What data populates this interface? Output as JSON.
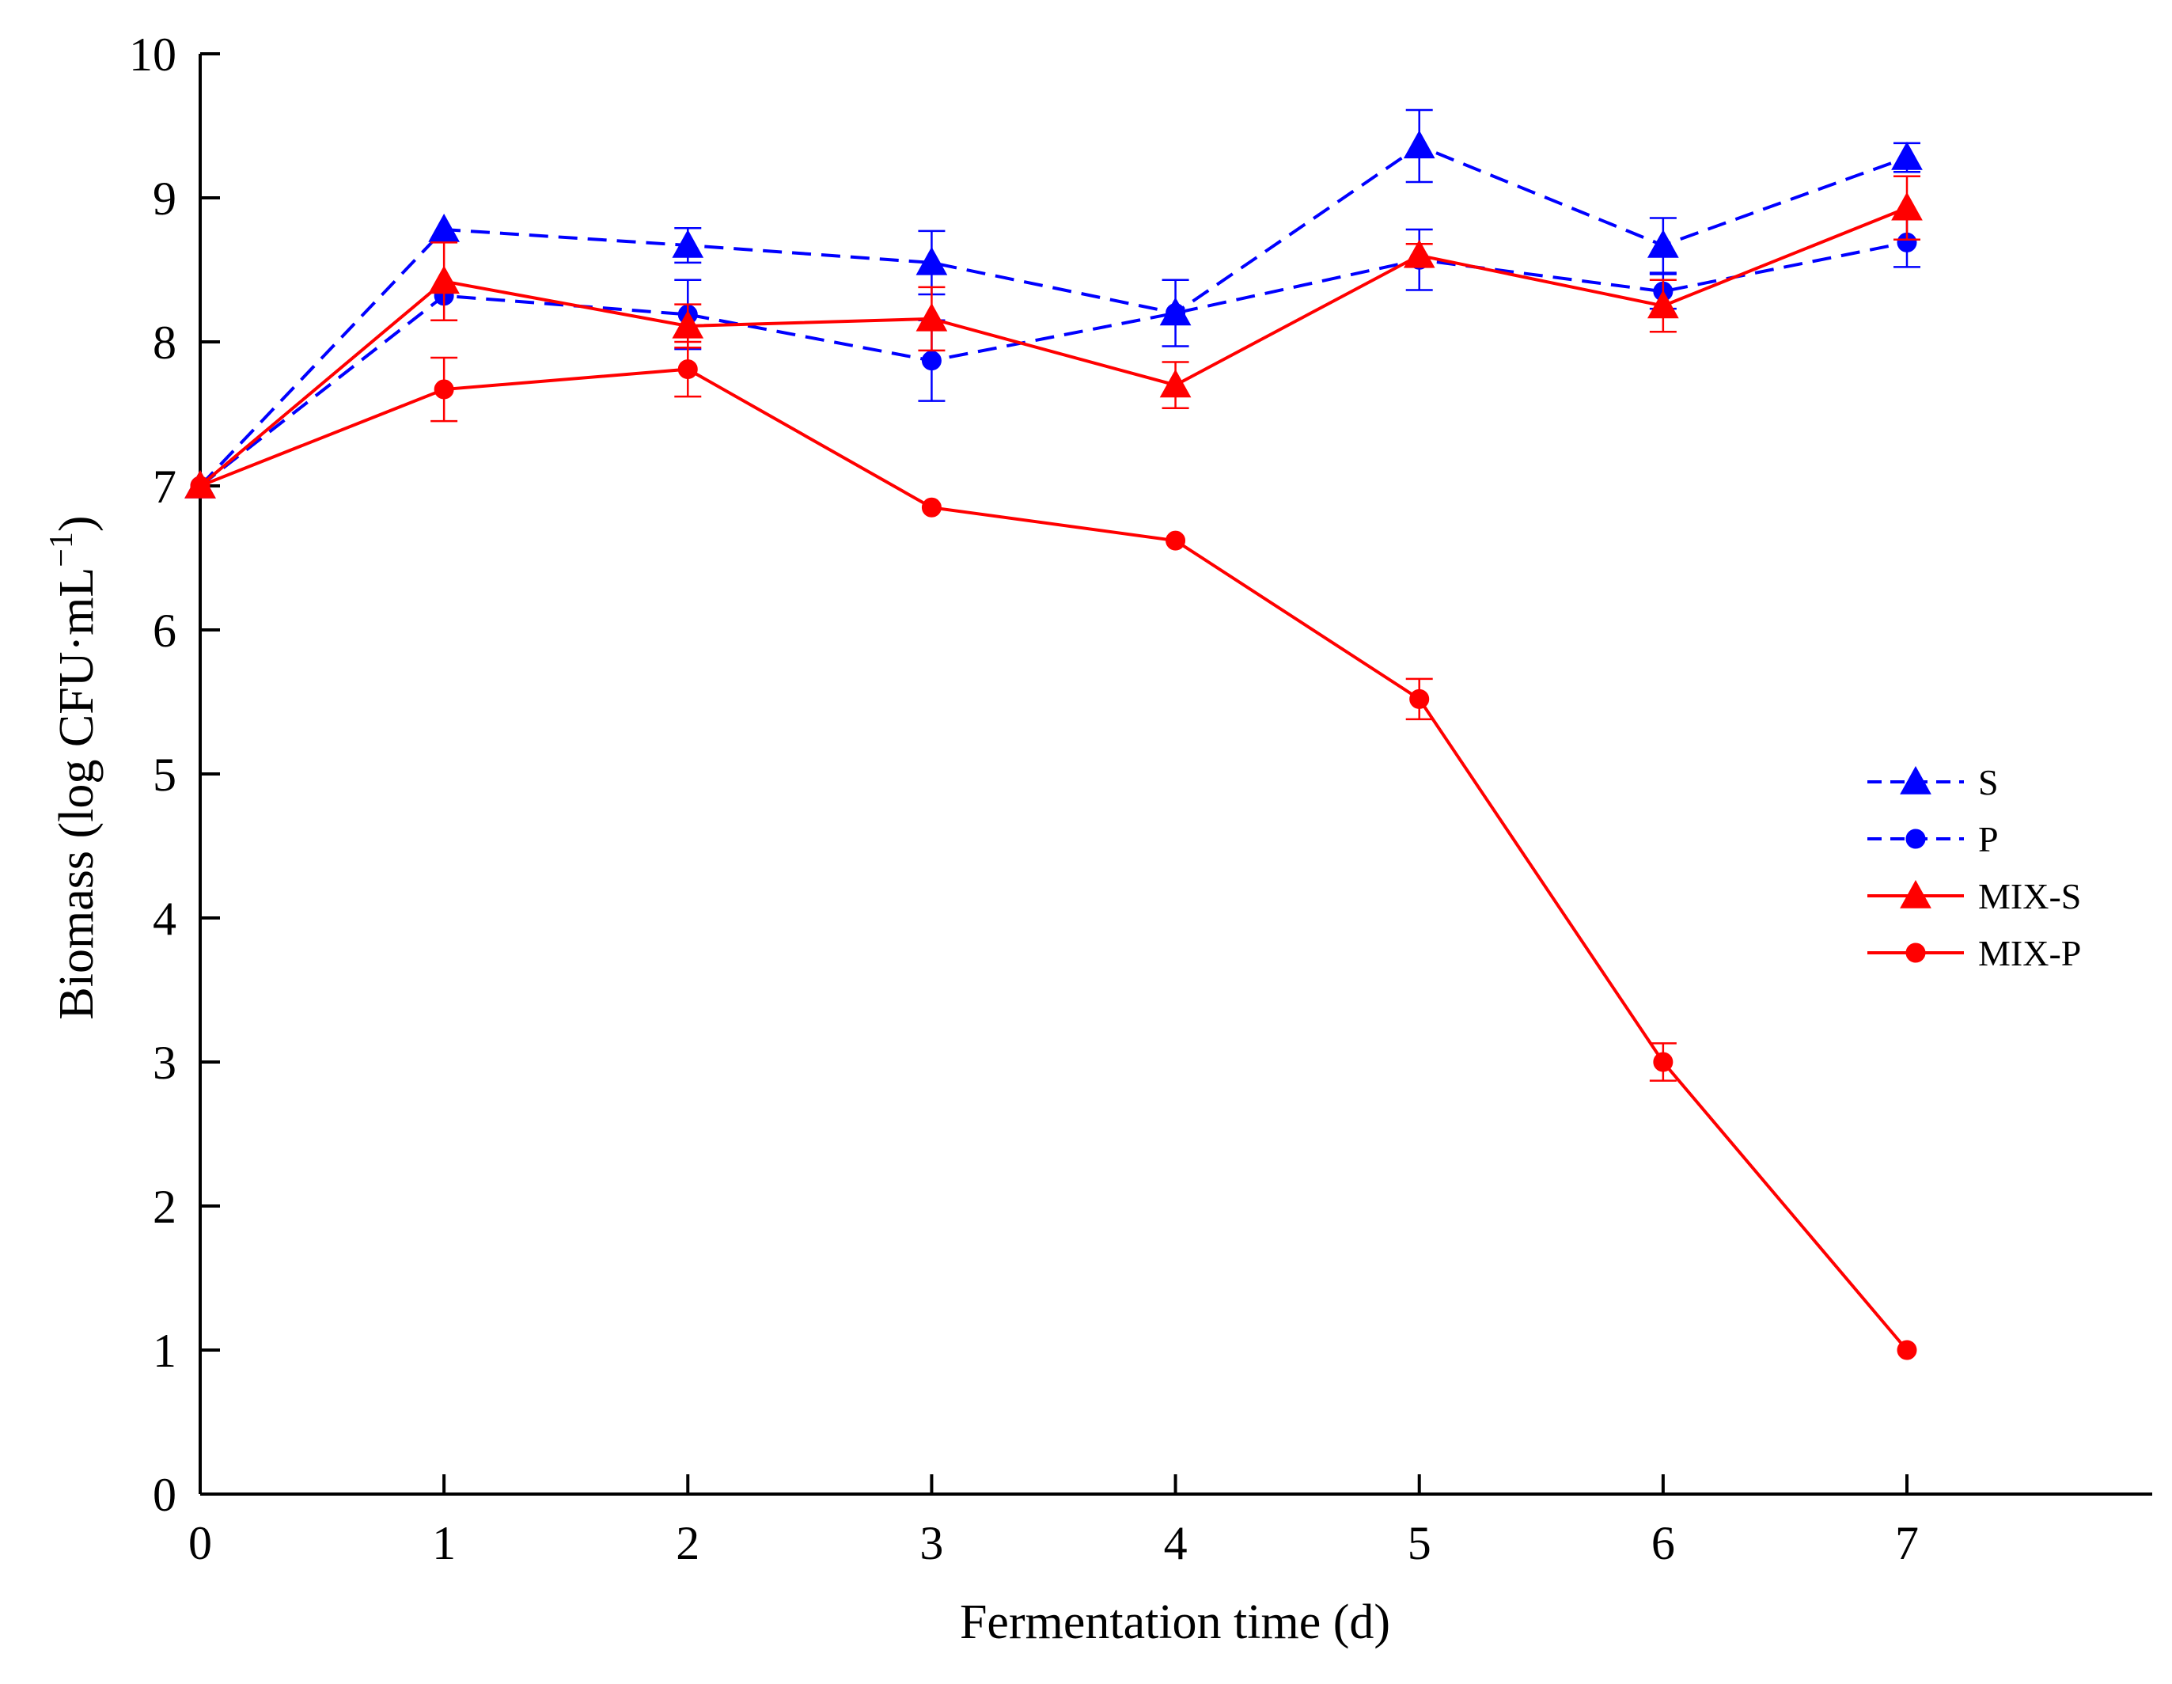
{
  "chart_data": {
    "type": "line",
    "title": "",
    "xlabel": "Fermentation time (d)",
    "ylabel": "Biomass (log CFU·mL",
    "ylabel_superscript": "−1",
    "ylabel_close": ")",
    "x": [
      0,
      1,
      2,
      3,
      4,
      5,
      6,
      7
    ],
    "xlim": [
      0,
      8
    ],
    "ylim": [
      0,
      10
    ],
    "xticks": [
      0,
      1,
      2,
      3,
      4,
      5,
      6,
      7
    ],
    "xtick_labels": [
      "0",
      "1",
      "2",
      "3",
      "4",
      "5",
      "6",
      "7"
    ],
    "yticks": [
      0,
      1,
      2,
      3,
      4,
      5,
      6,
      7,
      8,
      9,
      10
    ],
    "ytick_labels": [
      "0",
      "1",
      "2",
      "3",
      "4",
      "5",
      "6",
      "7",
      "8",
      "9",
      "10"
    ],
    "grid": false,
    "legend_position": "right",
    "series": [
      {
        "name": "S",
        "color": "#0000ff",
        "line_style": "dashed",
        "marker": "triangle",
        "values": [
          7.0,
          8.78,
          8.67,
          8.55,
          8.2,
          9.36,
          8.67,
          9.28
        ],
        "errors": [
          0,
          0,
          0.12,
          0.22,
          0.23,
          0.25,
          0.19,
          0.1
        ]
      },
      {
        "name": "P",
        "color": "#0000ff",
        "line_style": "dashed",
        "marker": "circle",
        "values": [
          7.0,
          8.32,
          8.19,
          7.87,
          8.2,
          8.57,
          8.35,
          8.69
        ],
        "errors": [
          0,
          0,
          0.24,
          0.28,
          0,
          0.21,
          0.12,
          0.17
        ]
      },
      {
        "name": "MIX-S",
        "color": "#ff0000",
        "line_style": "solid",
        "marker": "triangle",
        "values": [
          7.0,
          8.42,
          8.11,
          8.16,
          7.7,
          8.6,
          8.25,
          8.93
        ],
        "errors": [
          0,
          0.27,
          0.15,
          0.22,
          0.16,
          0.08,
          0.18,
          0.22
        ]
      },
      {
        "name": "MIX-P",
        "color": "#ff0000",
        "line_style": "solid",
        "marker": "circle",
        "values": [
          7.0,
          7.67,
          7.81,
          6.85,
          6.62,
          5.52,
          3.0,
          1.0
        ],
        "errors": [
          0,
          0.22,
          0.19,
          0,
          0,
          0.14,
          0.13,
          0
        ]
      }
    ]
  }
}
